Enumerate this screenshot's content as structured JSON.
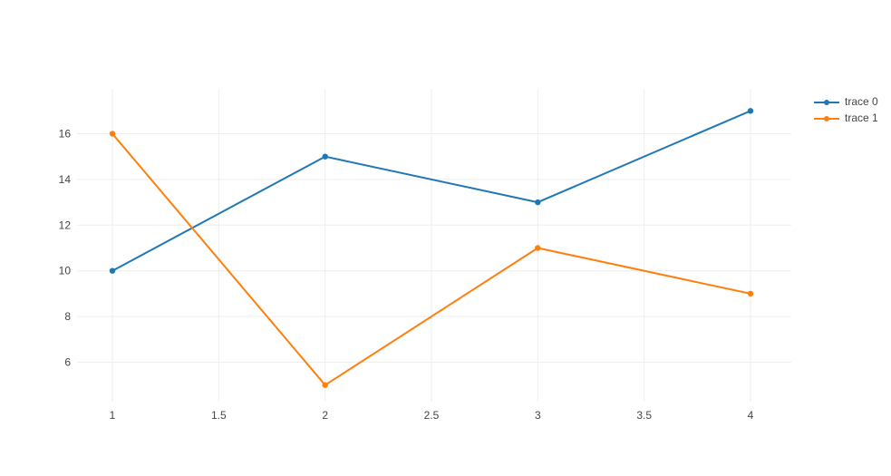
{
  "chart_data": {
    "type": "line",
    "title": "",
    "xlabel": "",
    "ylabel": "",
    "x": [
      1,
      2,
      3,
      4
    ],
    "series": [
      {
        "name": "trace 0",
        "color": "#1f77b4",
        "values": [
          10,
          15,
          13,
          17
        ]
      },
      {
        "name": "trace 1",
        "color": "#ff7f0e",
        "values": [
          16,
          5,
          11,
          9
        ]
      }
    ],
    "x_ticks": [
      1,
      1.5,
      2,
      2.5,
      3,
      3.5,
      4
    ],
    "x_tick_labels": [
      "1",
      "1.5",
      "2",
      "2.5",
      "3",
      "3.5",
      "4"
    ],
    "y_ticks": [
      6,
      8,
      10,
      12,
      14,
      16
    ],
    "y_tick_labels": [
      "6",
      "8",
      "10",
      "12",
      "14",
      "16"
    ],
    "xlim": [
      0.8338,
      4.1918
    ],
    "ylim": [
      4.274,
      17.925
    ],
    "grid": true,
    "grid_color": "#eeeeee",
    "tick_label_color": "#444444",
    "background_color": "#ffffff",
    "legend_position": "right",
    "line_width": 2,
    "marker_radius": 3.2
  }
}
